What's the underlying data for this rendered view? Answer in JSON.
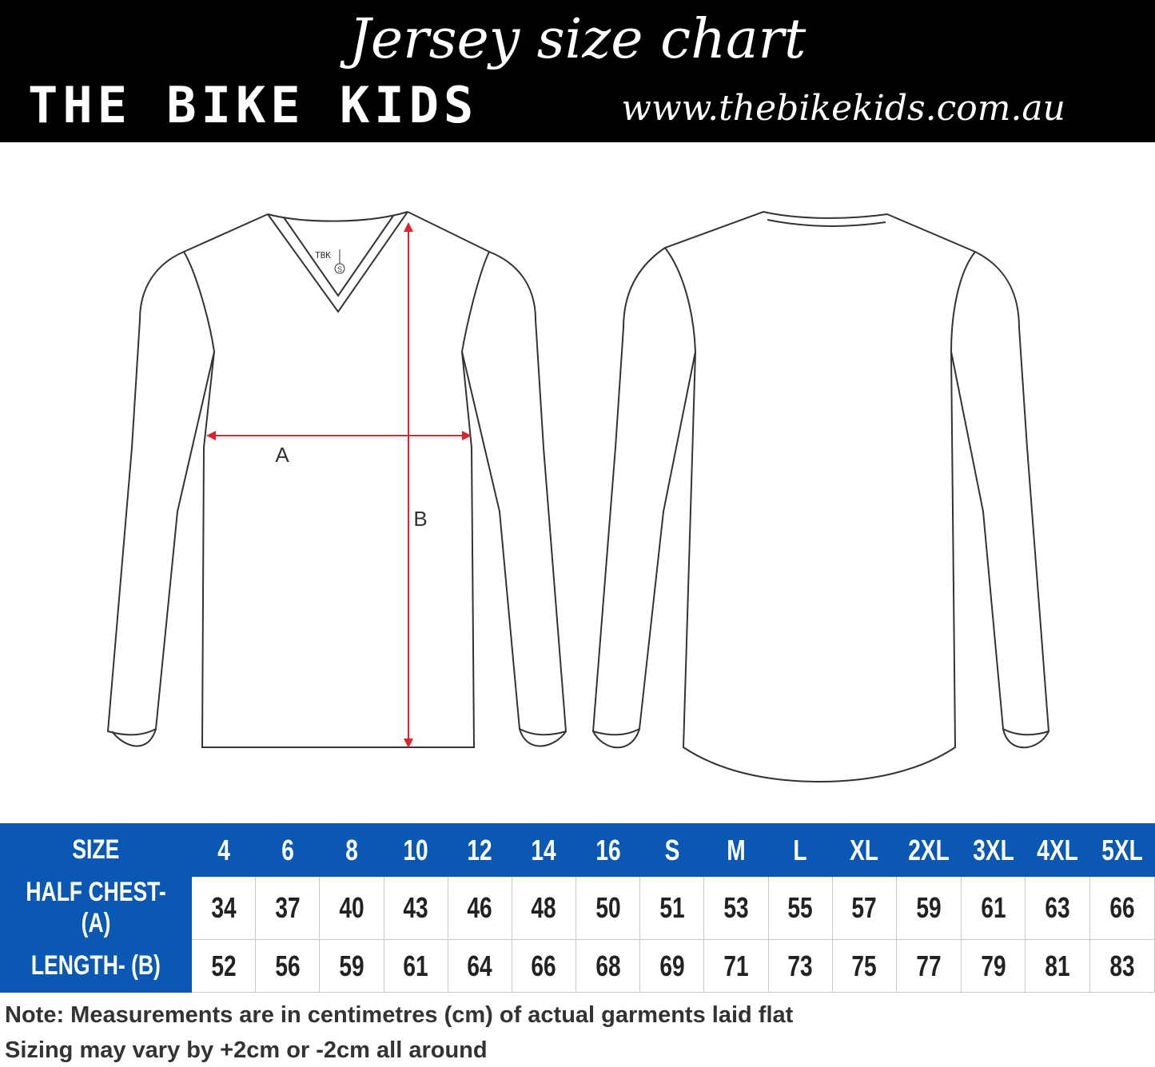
{
  "header": {
    "title": "Jersey size chart",
    "brand": "THE BIKE KIDS",
    "url": "www.thebikekids.com.au"
  },
  "diagram": {
    "label_a": "A",
    "label_b": "B",
    "tag_brand": "TBK",
    "tag_size": "S",
    "arrow_color": "#d9262e"
  },
  "table": {
    "header_color": "#0a58b3",
    "columns": [
      "SIZE",
      "4",
      "6",
      "8",
      "10",
      "12",
      "14",
      "16",
      "S",
      "M",
      "L",
      "XL",
      "2XL",
      "3XL",
      "4XL",
      "5XL"
    ],
    "rows": [
      {
        "label": "HALF CHEST- (A)",
        "values": [
          "34",
          "37",
          "40",
          "43",
          "46",
          "48",
          "50",
          "51",
          "53",
          "55",
          "57",
          "59",
          "61",
          "63",
          "66"
        ]
      },
      {
        "label": "LENGTH- (B)",
        "values": [
          "52",
          "56",
          "59",
          "61",
          "64",
          "66",
          "68",
          "69",
          "71",
          "73",
          "75",
          "77",
          "79",
          "81",
          "83"
        ]
      }
    ]
  },
  "notes": [
    "Note: Measurements are in centimetres (cm) of actual garments laid flat",
    "Sizing may vary by +2cm or -2cm all around"
  ]
}
